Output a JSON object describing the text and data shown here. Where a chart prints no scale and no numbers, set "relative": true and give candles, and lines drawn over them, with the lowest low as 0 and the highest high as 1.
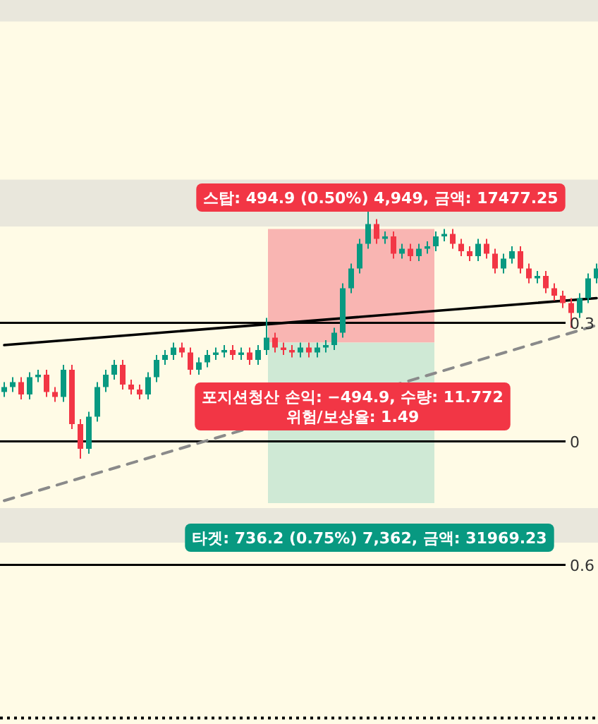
{
  "chart_data": {
    "type": "candlestick",
    "relative": true,
    "categories": [
      null,
      null,
      null,
      null,
      null,
      null,
      null,
      null,
      null,
      null,
      null,
      null,
      null,
      null,
      null,
      null,
      null,
      null,
      null,
      null,
      null,
      null,
      null,
      null,
      null,
      null,
      null,
      null,
      null,
      null,
      null,
      null,
      null,
      null,
      null,
      null,
      null,
      null,
      null,
      null,
      null,
      null,
      null,
      null,
      null,
      null,
      null,
      null,
      null,
      null,
      null,
      null,
      null,
      null,
      null,
      null,
      null,
      null,
      null,
      null,
      null,
      null,
      null,
      null,
      null,
      null,
      null,
      null,
      null,
      null,
      null
    ],
    "ohlc": [
      [
        0.27,
        0.31,
        0.25,
        0.29
      ],
      [
        0.29,
        0.33,
        0.27,
        0.31
      ],
      [
        0.31,
        0.33,
        0.24,
        0.26
      ],
      [
        0.26,
        0.35,
        0.24,
        0.33
      ],
      [
        0.33,
        0.36,
        0.31,
        0.34
      ],
      [
        0.34,
        0.36,
        0.25,
        0.27
      ],
      [
        0.27,
        0.29,
        0.23,
        0.25
      ],
      [
        0.25,
        0.38,
        0.23,
        0.36
      ],
      [
        0.36,
        0.38,
        0.12,
        0.14
      ],
      [
        0.14,
        0.16,
        0.0,
        0.04
      ],
      [
        0.04,
        0.19,
        0.02,
        0.17
      ],
      [
        0.17,
        0.31,
        0.15,
        0.29
      ],
      [
        0.29,
        0.36,
        0.27,
        0.34
      ],
      [
        0.34,
        0.4,
        0.32,
        0.38
      ],
      [
        0.38,
        0.4,
        0.28,
        0.3
      ],
      [
        0.3,
        0.32,
        0.26,
        0.28
      ],
      [
        0.28,
        0.3,
        0.24,
        0.26
      ],
      [
        0.26,
        0.35,
        0.24,
        0.33
      ],
      [
        0.33,
        0.42,
        0.31,
        0.4
      ],
      [
        0.4,
        0.44,
        0.38,
        0.42
      ],
      [
        0.42,
        0.47,
        0.4,
        0.45
      ],
      [
        0.45,
        0.47,
        0.41,
        0.43
      ],
      [
        0.43,
        0.45,
        0.34,
        0.36
      ],
      [
        0.36,
        0.41,
        0.34,
        0.39
      ],
      [
        0.39,
        0.44,
        0.37,
        0.42
      ],
      [
        0.42,
        0.45,
        0.4,
        0.43
      ],
      [
        0.43,
        0.46,
        0.41,
        0.44
      ],
      [
        0.44,
        0.46,
        0.4,
        0.42
      ],
      [
        0.42,
        0.45,
        0.4,
        0.43
      ],
      [
        0.43,
        0.45,
        0.38,
        0.4
      ],
      [
        0.4,
        0.46,
        0.38,
        0.44
      ],
      [
        0.44,
        0.57,
        0.42,
        0.49
      ],
      [
        0.49,
        0.51,
        0.43,
        0.45
      ],
      [
        0.45,
        0.47,
        0.42,
        0.44
      ],
      [
        0.44,
        0.46,
        0.41,
        0.43
      ],
      [
        0.43,
        0.47,
        0.41,
        0.45
      ],
      [
        0.45,
        0.47,
        0.41,
        0.43
      ],
      [
        0.43,
        0.47,
        0.41,
        0.45
      ],
      [
        0.45,
        0.48,
        0.43,
        0.46
      ],
      [
        0.46,
        0.53,
        0.44,
        0.51
      ],
      [
        0.51,
        0.71,
        0.49,
        0.69
      ],
      [
        0.69,
        0.79,
        0.67,
        0.77
      ],
      [
        0.77,
        0.89,
        0.75,
        0.87
      ],
      [
        0.87,
        1.0,
        0.85,
        0.95
      ],
      [
        0.95,
        0.97,
        0.87,
        0.89
      ],
      [
        0.89,
        0.92,
        0.87,
        0.9
      ],
      [
        0.9,
        0.92,
        0.81,
        0.83
      ],
      [
        0.83,
        0.87,
        0.81,
        0.85
      ],
      [
        0.85,
        0.87,
        0.8,
        0.82
      ],
      [
        0.82,
        0.87,
        0.8,
        0.85
      ],
      [
        0.85,
        0.88,
        0.83,
        0.86
      ],
      [
        0.86,
        0.92,
        0.84,
        0.9
      ],
      [
        0.9,
        0.93,
        0.88,
        0.91
      ],
      [
        0.91,
        0.93,
        0.85,
        0.87
      ],
      [
        0.87,
        0.89,
        0.82,
        0.84
      ],
      [
        0.84,
        0.86,
        0.8,
        0.82
      ],
      [
        0.82,
        0.89,
        0.8,
        0.87
      ],
      [
        0.87,
        0.89,
        0.81,
        0.83
      ],
      [
        0.83,
        0.85,
        0.75,
        0.77
      ],
      [
        0.77,
        0.83,
        0.75,
        0.81
      ],
      [
        0.81,
        0.86,
        0.79,
        0.84
      ],
      [
        0.84,
        0.86,
        0.75,
        0.77
      ],
      [
        0.77,
        0.79,
        0.71,
        0.73
      ],
      [
        0.73,
        0.76,
        0.71,
        0.74
      ],
      [
        0.74,
        0.76,
        0.67,
        0.69
      ],
      [
        0.69,
        0.71,
        0.64,
        0.66
      ],
      [
        0.66,
        0.68,
        0.61,
        0.63
      ],
      [
        0.63,
        0.65,
        0.53,
        0.59
      ],
      [
        0.59,
        0.67,
        0.57,
        0.65
      ],
      [
        0.65,
        0.75,
        0.63,
        0.73
      ],
      [
        0.73,
        0.79,
        0.71,
        0.77
      ]
    ],
    "series": [
      {
        "type": "line",
        "color": "#000000",
        "line_style": "solid",
        "values": [
          0.46,
          null,
          null,
          null,
          null,
          null,
          null,
          null,
          null,
          null,
          null,
          null,
          null,
          null,
          null,
          null,
          null,
          null,
          null,
          null,
          null,
          null,
          null,
          null,
          null,
          null,
          null,
          null,
          null,
          null,
          null,
          null,
          null,
          null,
          null,
          null,
          null,
          null,
          null,
          null,
          null,
          null,
          null,
          null,
          null,
          null,
          null,
          null,
          null,
          null,
          null,
          null,
          null,
          null,
          null,
          null,
          null,
          null,
          null,
          null,
          null,
          null,
          null,
          null,
          null,
          null,
          null,
          null,
          null,
          null,
          0.65
        ]
      },
      {
        "type": "line",
        "color": "#8a8a8a",
        "line_style": "dashed",
        "values": [
          -0.17,
          null,
          null,
          null,
          null,
          null,
          null,
          null,
          null,
          null,
          null,
          null,
          null,
          null,
          null,
          null,
          null,
          null,
          null,
          null,
          null,
          null,
          null,
          null,
          null,
          null,
          null,
          null,
          null,
          null,
          null,
          null,
          null,
          null,
          null,
          null,
          null,
          null,
          null,
          null,
          null,
          null,
          null,
          null,
          null,
          null,
          null,
          null,
          null,
          null,
          null,
          null,
          null,
          null,
          null,
          null,
          null,
          null,
          null,
          null,
          null,
          null,
          null,
          null,
          null,
          null,
          null,
          null,
          null,
          null,
          0.54
        ]
      }
    ],
    "bands": [
      {
        "axis": "y",
        "from": 1.77,
        "to": 1.86,
        "color": "#e9e7dc"
      },
      {
        "axis": "y",
        "from": 0.94,
        "to": 1.13,
        "color": "#e9e7dc"
      },
      {
        "axis": "y",
        "from": -0.34,
        "to": -0.2,
        "color": "#e9e7dc"
      },
      {
        "axis": "y",
        "from": 0.47,
        "to": 0.93,
        "color": "#f9b5b2"
      },
      {
        "axis": "y",
        "from": -0.18,
        "to": 0.47,
        "color": "#cfe9d5"
      }
    ],
    "ref_lines": [
      {
        "axis": "y",
        "value": 0.55,
        "color": "#000000",
        "line_style": "solid"
      },
      {
        "axis": "y",
        "value": 0.07,
        "color": "#000000",
        "line_style": "solid"
      },
      {
        "axis": "y",
        "value": -0.43,
        "color": "#000000",
        "line_style": "solid"
      },
      {
        "axis": "y",
        "value": -1.05,
        "color": "#000000",
        "line_style": "dotted"
      }
    ],
    "annotations": [
      "스탑: 494.9 (0.50%) 4,949, 금액: 17477.25",
      "포지션청산 손익: −494.9, 수량: 11.772",
      "위험/보상율: 1.49",
      "타겟: 736.2 (0.75%) 7,362, 금액: 31969.23",
      "0.3",
      "0",
      "0.6"
    ]
  }
}
